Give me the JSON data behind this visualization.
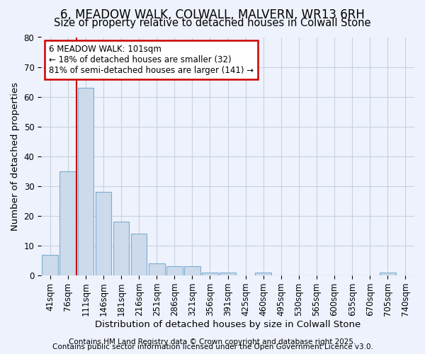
{
  "title_line1": "6, MEADOW WALK, COLWALL, MALVERN, WR13 6RH",
  "title_line2": "Size of property relative to detached houses in Colwall Stone",
  "xlabel": "Distribution of detached houses by size in Colwall Stone",
  "ylabel": "Number of detached properties",
  "categories": [
    "41sqm",
    "76sqm",
    "111sqm",
    "146sqm",
    "181sqm",
    "216sqm",
    "251sqm",
    "286sqm",
    "321sqm",
    "356sqm",
    "391sqm",
    "425sqm",
    "460sqm",
    "495sqm",
    "530sqm",
    "565sqm",
    "600sqm",
    "635sqm",
    "670sqm",
    "705sqm",
    "740sqm"
  ],
  "values": [
    7,
    35,
    63,
    28,
    18,
    14,
    4,
    3,
    3,
    1,
    1,
    0,
    1,
    0,
    0,
    0,
    0,
    0,
    0,
    1,
    0
  ],
  "bar_color": "#ccdaeb",
  "bar_edge_color": "#7aadcf",
  "grid_color": "#c8d0e0",
  "background_color": "#eef2fc",
  "annotation_text": "6 MEADOW WALK: 101sqm\n← 18% of detached houses are smaller (32)\n81% of semi-detached houses are larger (141) →",
  "annotation_box_facecolor": "#ffffff",
  "annotation_box_edgecolor": "#cc0000",
  "red_line_color": "#cc0000",
  "red_line_x": 1.5,
  "footer_line1": "Contains HM Land Registry data © Crown copyright and database right 2025.",
  "footer_line2": "Contains public sector information licensed under the Open Government Licence v3.0.",
  "ylim": [
    0,
    80
  ],
  "yticks": [
    0,
    10,
    20,
    30,
    40,
    50,
    60,
    70,
    80
  ],
  "title_fontsize": 12,
  "subtitle_fontsize": 10.5,
  "axis_label_fontsize": 9.5,
  "tick_fontsize": 8.5,
  "footer_fontsize": 7.5,
  "annotation_fontsize": 8.5
}
